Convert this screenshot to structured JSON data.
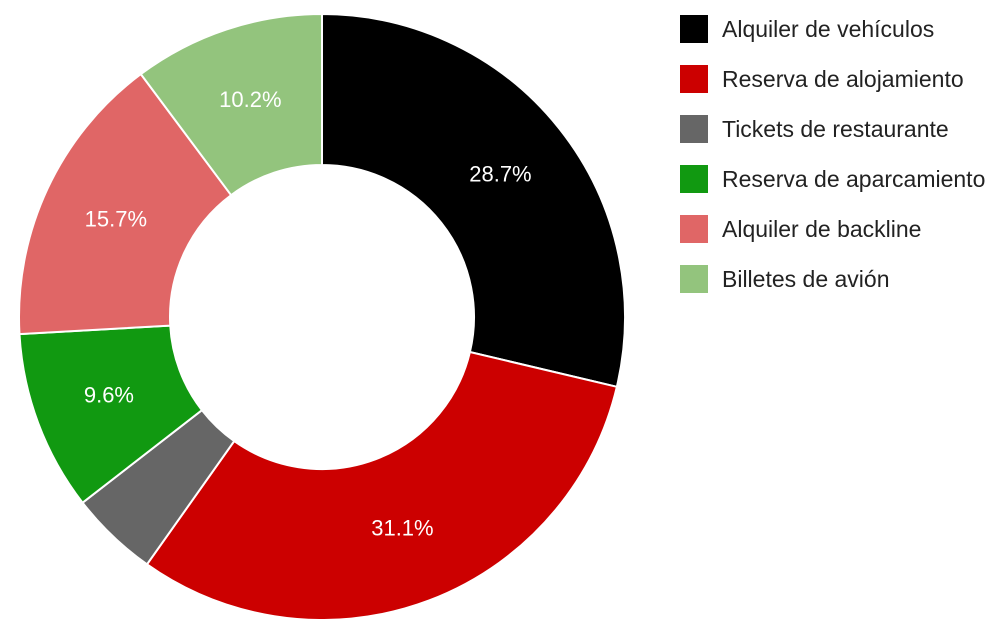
{
  "chart_data": {
    "type": "donut",
    "categories": [
      "Alquiler de vehículos",
      "Reserva de alojamiento",
      "Tickets de restaurante",
      "Reserva de aparcamiento",
      "Alquiler de backline",
      "Billetes de avión"
    ],
    "values": [
      28.7,
      31.1,
      4.7,
      9.6,
      15.7,
      10.2
    ],
    "value_labels": [
      "28.7%",
      "31.1%",
      null,
      "9.6%",
      "15.7%",
      "10.2%"
    ],
    "colors": [
      "#000000",
      "#cc0000",
      "#666666",
      "#119911",
      "#e06666",
      "#93c47d"
    ],
    "legend": "right"
  }
}
